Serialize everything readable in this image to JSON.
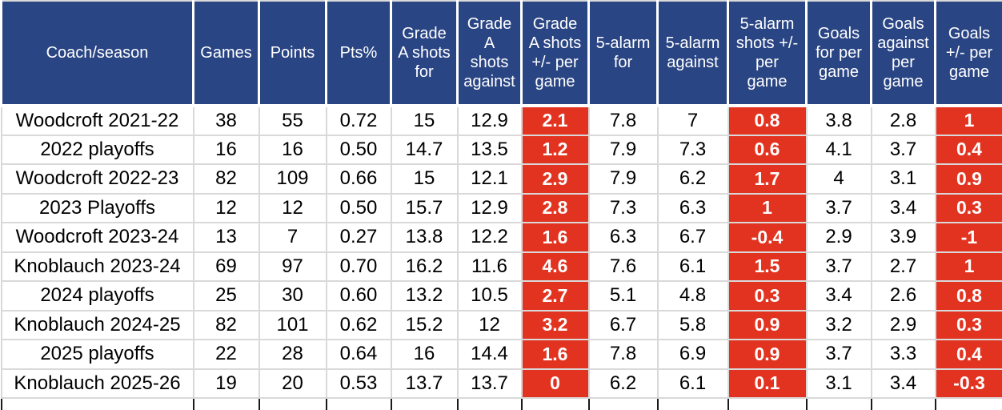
{
  "colors": {
    "header_bg": "#2a4584",
    "header_text": "#ffffff",
    "highlight_bg": "#e23320",
    "highlight_text": "#ffffff",
    "grid_line": "#d9d9d9",
    "partial_row_border": "#1a1a1a",
    "body_text": "#000000",
    "row_bg": "#ffffff"
  },
  "chart_data": {
    "type": "table",
    "columns": [
      {
        "label": "Coach/season",
        "highlight": false
      },
      {
        "label": "Games",
        "highlight": false
      },
      {
        "label": "Points",
        "highlight": false
      },
      {
        "label": "Pts%",
        "highlight": false
      },
      {
        "label": "Grade A shots for",
        "highlight": false
      },
      {
        "label": "Grade A shots against",
        "highlight": false
      },
      {
        "label": "Grade A shots +/- per game",
        "highlight": true
      },
      {
        "label": "5-alarm for",
        "highlight": false
      },
      {
        "label": "5-alarm against",
        "highlight": false
      },
      {
        "label": "5-alarm shots +/- per game",
        "highlight": true
      },
      {
        "label": "Goals for per game",
        "highlight": false
      },
      {
        "label": "Goals against per game",
        "highlight": false
      },
      {
        "label": "Goals +/- per game",
        "highlight": true
      }
    ],
    "rows": [
      {
        "cells": [
          "Woodcroft 2021-22",
          "38",
          "55",
          "0.72",
          "15",
          "12.9",
          "2.1",
          "7.8",
          "7",
          "0.8",
          "3.8",
          "2.8",
          "1"
        ]
      },
      {
        "cells": [
          "2022 playoffs",
          "16",
          "16",
          "0.50",
          "14.7",
          "13.5",
          "1.2",
          "7.9",
          "7.3",
          "0.6",
          "4.1",
          "3.7",
          "0.4"
        ]
      },
      {
        "cells": [
          "Woodcroft 2022-23",
          "82",
          "109",
          "0.66",
          "15",
          "12.1",
          "2.9",
          "7.9",
          "6.2",
          "1.7",
          "4",
          "3.1",
          "0.9"
        ]
      },
      {
        "cells": [
          "2023 Playoffs",
          "12",
          "12",
          "0.50",
          "15.7",
          "12.9",
          "2.8",
          "7.3",
          "6.3",
          "1",
          "3.7",
          "3.4",
          "0.3"
        ]
      },
      {
        "cells": [
          "Woodcroft 2023-24",
          "13",
          "7",
          "0.27",
          "13.8",
          "12.2",
          "1.6",
          "6.3",
          "6.7",
          "-0.4",
          "2.9",
          "3.9",
          "-1"
        ]
      },
      {
        "cells": [
          "Knoblauch 2023-24",
          "69",
          "97",
          "0.70",
          "16.2",
          "11.6",
          "4.6",
          "7.6",
          "6.1",
          "1.5",
          "3.7",
          "2.7",
          "1"
        ]
      },
      {
        "cells": [
          "2024 playoffs",
          "25",
          "30",
          "0.60",
          "13.2",
          "10.5",
          "2.7",
          "5.1",
          "4.8",
          "0.3",
          "3.4",
          "2.6",
          "0.8"
        ]
      },
      {
        "cells": [
          "Knoblauch 2024-25",
          "82",
          "101",
          "0.62",
          "15.2",
          "12",
          "3.2",
          "6.7",
          "5.8",
          "0.9",
          "3.2",
          "2.9",
          "0.3"
        ]
      },
      {
        "cells": [
          "2025 playoffs",
          "22",
          "28",
          "0.64",
          "16",
          "14.4",
          "1.6",
          "7.8",
          "6.9",
          "0.9",
          "3.7",
          "3.3",
          "0.4"
        ]
      },
      {
        "cells": [
          "Knoblauch 2025-26",
          "19",
          "20",
          "0.53",
          "13.7",
          "13.7",
          "0",
          "6.2",
          "6.1",
          "0.1",
          "3.1",
          "3.4",
          "-0.3"
        ]
      }
    ]
  }
}
